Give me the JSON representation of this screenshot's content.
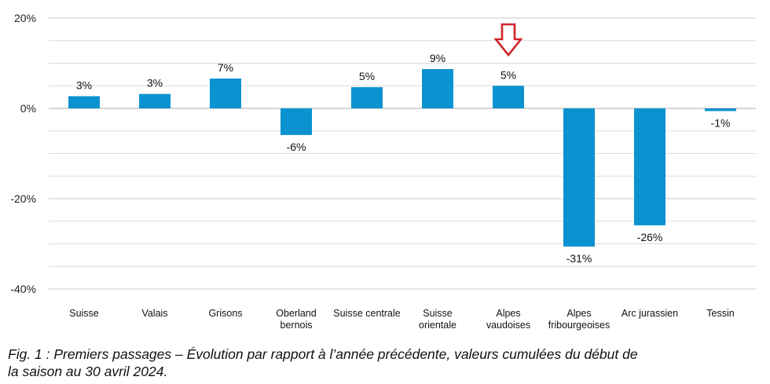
{
  "chart_data": {
    "type": "bar",
    "title": "",
    "xlabel": "",
    "ylabel": "",
    "categories": [
      [
        "Suisse"
      ],
      [
        "Valais"
      ],
      [
        "Grisons"
      ],
      [
        "Oberland",
        "bernois"
      ],
      [
        "Suisse centrale"
      ],
      [
        "Suisse",
        "orientale"
      ],
      [
        "Alpes",
        "vaudoises"
      ],
      [
        "Alpes",
        "fribourgeoises"
      ],
      [
        "Arc jurassien"
      ],
      [
        "Tessin"
      ]
    ],
    "values": [
      2.7,
      3.2,
      6.6,
      -5.9,
      4.7,
      8.7,
      5.0,
      -30.6,
      -25.9,
      -0.6
    ],
    "value_labels": [
      "3%",
      "3%",
      "7%",
      "-6%",
      "5%",
      "9%",
      "5%",
      "-31%",
      "-26%",
      "-1%"
    ],
    "ylim": [
      -40,
      20
    ],
    "yticks": [
      20,
      0,
      -20,
      -40
    ],
    "ytick_labels": [
      "20%",
      "0%",
      "-20%",
      "-40%"
    ],
    "grid": true,
    "legend": "none",
    "highlight_category_index": 6,
    "bar_color": "#0b93d1",
    "highlight_arrow_color": "#d0242b",
    "grid_color": "#dcdcdc",
    "zero_line_color": "#c8c8c8"
  },
  "caption": {
    "line1": "Fig. 1 : Premiers passages – Évolution par rapport à l’année précédente, valeurs cumulées du début de",
    "line2": "la saison au 30 avril 2024."
  }
}
